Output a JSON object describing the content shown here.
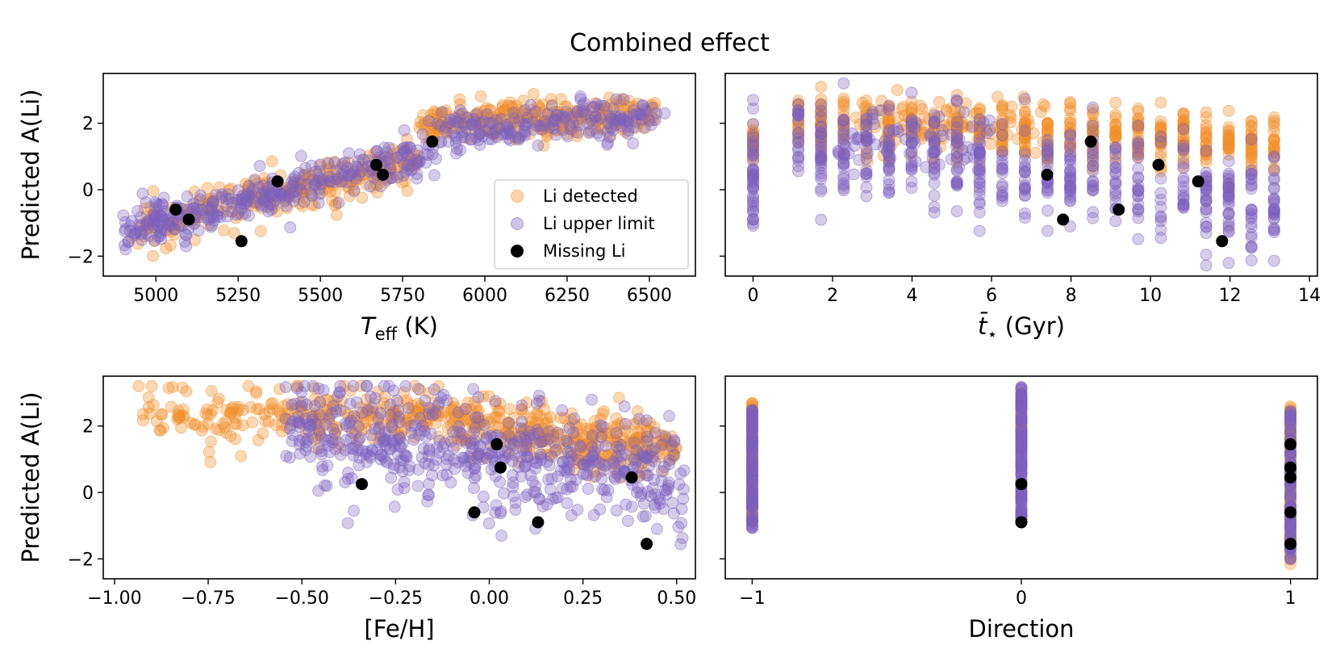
{
  "figure": {
    "title": "Combined effect"
  },
  "colors": {
    "detected": "#f28e2b",
    "upper": "#7b5fbf",
    "missing": "#000000"
  },
  "legend": {
    "items": [
      {
        "key": "detected",
        "label": "Li detected"
      },
      {
        "key": "upper",
        "label": "Li upper limit"
      },
      {
        "key": "missing",
        "label": "Missing Li"
      }
    ]
  },
  "chart_data": [
    {
      "id": "teff",
      "type": "scatter",
      "xlabel": "T_eff (K)",
      "xlabel_main": "T",
      "xlabel_sub": "eff",
      "xlabel_unit": " (K)",
      "ylabel": "Predicted A(Li)",
      "xlim": [
        4840,
        6640
      ],
      "ylim": [
        -2.6,
        3.5
      ],
      "xticks": [
        5000,
        5250,
        5500,
        5750,
        6000,
        6250,
        6500
      ],
      "xtick_labels": [
        "5000",
        "5250",
        "5500",
        "5750",
        "6000",
        "6250",
        "6500"
      ],
      "yticks": [
        -2,
        0,
        2
      ],
      "ytick_labels": [
        "−2",
        "0",
        "2"
      ],
      "legend_position": "lower-right",
      "missing_points": [
        [
          5060,
          -0.6
        ],
        [
          5100,
          -0.9
        ],
        [
          5260,
          -1.55
        ],
        [
          5370,
          0.25
        ],
        [
          5670,
          0.75
        ],
        [
          5690,
          0.45
        ],
        [
          5840,
          1.45
        ]
      ]
    },
    {
      "id": "age",
      "type": "scatter",
      "xlabel": "t̄⋆ (Gyr)",
      "xlabel_main": "t̄",
      "xlabel_sub": "⋆",
      "xlabel_unit": " (Gyr)",
      "ylabel": "",
      "xlim": [
        -0.7,
        14.2
      ],
      "ylim": [
        -2.6,
        3.5
      ],
      "xticks": [
        0,
        2,
        4,
        6,
        8,
        10,
        12,
        14
      ],
      "xtick_labels": [
        "0",
        "2",
        "4",
        "6",
        "8",
        "10",
        "12",
        "14"
      ],
      "yticks": [
        -2,
        0,
        2
      ],
      "ytick_labels": [
        "",
        "",
        ""
      ],
      "missing_points": [
        [
          7.4,
          0.45
        ],
        [
          7.8,
          -0.9
        ],
        [
          8.5,
          1.45
        ],
        [
          9.2,
          -0.6
        ],
        [
          10.2,
          0.75
        ],
        [
          11.2,
          0.25
        ],
        [
          11.8,
          -1.55
        ]
      ]
    },
    {
      "id": "feh",
      "type": "scatter",
      "xlabel": "[Fe/H]",
      "ylabel": "Predicted A(Li)",
      "xlim": [
        -1.03,
        0.55
      ],
      "ylim": [
        -2.6,
        3.5
      ],
      "xticks": [
        -1.0,
        -0.75,
        -0.5,
        -0.25,
        0.0,
        0.25,
        0.5
      ],
      "xtick_labels": [
        "−1.00",
        "−0.75",
        "−0.50",
        "−0.25",
        "0.00",
        "0.25",
        "0.50"
      ],
      "yticks": [
        -2,
        0,
        2
      ],
      "ytick_labels": [
        "−2",
        "0",
        "2"
      ],
      "missing_points": [
        [
          -0.34,
          0.25
        ],
        [
          -0.04,
          -0.6
        ],
        [
          0.02,
          1.45
        ],
        [
          0.03,
          0.75
        ],
        [
          0.13,
          -0.9
        ],
        [
          0.38,
          0.45
        ],
        [
          0.42,
          -1.55
        ]
      ]
    },
    {
      "id": "direction",
      "type": "scatter",
      "xlabel": "Direction",
      "ylabel": "",
      "xlim": [
        -1.1,
        1.1
      ],
      "ylim": [
        -2.6,
        3.5
      ],
      "xticks": [
        -1,
        0,
        1
      ],
      "xtick_labels": [
        "−1",
        "0",
        "1"
      ],
      "yticks": [
        -2,
        0,
        2
      ],
      "ytick_labels": [
        "",
        "",
        ""
      ],
      "missing_points": [
        [
          0,
          0.25
        ],
        [
          0,
          -0.9
        ],
        [
          1,
          1.45
        ],
        [
          1,
          0.75
        ],
        [
          1,
          0.45
        ],
        [
          1,
          -0.6
        ],
        [
          1,
          -1.55
        ]
      ]
    }
  ]
}
